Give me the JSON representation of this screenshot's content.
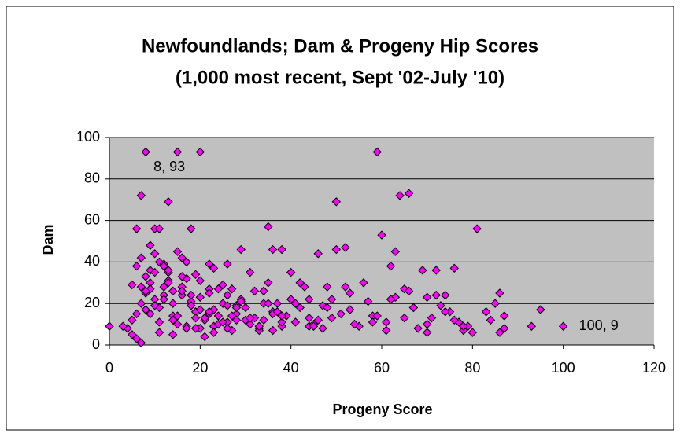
{
  "chart_data": {
    "type": "scatter",
    "title": [
      "Newfoundlands; Dam & Progeny Hip Scores",
      "(1,000 most recent, Sept '02-July '10)"
    ],
    "x_label": "Progeny Score",
    "y_label": "Dam",
    "xlim": [
      0,
      120
    ],
    "xticks": [
      0,
      20,
      40,
      60,
      80,
      100,
      120
    ],
    "ylim": [
      0,
      100
    ],
    "yticks": [
      0,
      20,
      40,
      60,
      80,
      100
    ],
    "grid": true,
    "background": "#c0c0c0",
    "series": [
      {
        "color": "#ff00ff",
        "x": [
          0,
          8,
          15,
          20,
          59,
          7,
          13,
          64,
          66,
          50,
          35,
          81,
          6,
          10,
          11,
          18,
          60,
          100,
          95,
          93,
          86,
          87,
          85,
          83,
          78,
          80,
          76,
          69,
          72,
          63,
          50,
          52,
          46,
          40,
          38,
          36,
          29,
          26,
          23,
          22,
          4,
          5,
          6,
          7,
          8,
          9,
          10,
          11,
          12,
          13,
          14,
          15,
          16,
          17,
          18,
          19,
          20,
          21,
          22,
          23,
          24,
          25,
          26,
          27,
          28,
          29,
          30,
          31,
          32,
          33,
          34,
          35,
          36,
          37,
          38,
          39,
          5,
          6,
          7,
          8,
          9,
          10,
          11,
          12,
          13,
          14,
          15,
          16,
          17,
          18,
          19,
          20,
          21,
          22,
          23,
          24,
          25,
          26,
          27,
          28,
          30,
          32,
          34,
          36,
          38,
          40,
          42,
          44,
          6,
          7,
          8,
          9,
          10,
          11,
          12,
          13,
          14,
          15,
          16,
          17,
          18,
          19,
          20,
          22,
          24,
          26,
          28,
          30,
          33,
          35,
          37,
          41,
          43,
          45,
          47,
          49,
          3,
          5,
          7,
          8,
          9,
          11,
          12,
          13,
          14,
          16,
          17,
          19,
          21,
          23,
          25,
          27,
          29,
          31,
          33,
          36,
          42,
          44,
          46,
          48,
          51,
          53,
          55,
          57,
          58,
          61,
          62,
          65,
          67,
          68,
          70,
          71,
          73,
          74,
          75,
          77,
          79,
          84,
          86,
          87,
          45,
          47,
          49,
          52,
          54,
          56,
          59,
          61,
          63,
          65,
          67,
          70,
          72,
          74,
          76,
          78,
          9,
          10,
          12,
          14,
          16,
          18,
          20,
          22,
          24,
          26,
          28,
          31,
          34,
          38,
          41,
          44,
          48,
          53,
          58,
          62,
          66,
          70
        ],
        "y": [
          9,
          93,
          93,
          93,
          93,
          72,
          69,
          72,
          73,
          69,
          57,
          56,
          56,
          56,
          56,
          56,
          53,
          9,
          17,
          9,
          25,
          14,
          20,
          16,
          7,
          6,
          37,
          36,
          36,
          45,
          46,
          47,
          44,
          35,
          46,
          46,
          46,
          39,
          37,
          39,
          8,
          12,
          15,
          20,
          25,
          30,
          22,
          18,
          28,
          35,
          14,
          10,
          24,
          32,
          19,
          16,
          8,
          12,
          27,
          9,
          14,
          20,
          11,
          7,
          15,
          22,
          18,
          10,
          13,
          8,
          12,
          30,
          16,
          20,
          9,
          14,
          5,
          38,
          42,
          33,
          27,
          19,
          40,
          24,
          36,
          12,
          45,
          28,
          9,
          21,
          34,
          17,
          13,
          25,
          6,
          10,
          29,
          8,
          14,
          19,
          12,
          26,
          20,
          15,
          11,
          22,
          18,
          9,
          3,
          28,
          17,
          36,
          44,
          11,
          22,
          31,
          5,
          14,
          26,
          40,
          19,
          8,
          23,
          15,
          10,
          24,
          18,
          12,
          7,
          20,
          16,
          11,
          28,
          10,
          19,
          13,
          9,
          29,
          1,
          26,
          15,
          6,
          39,
          30,
          20,
          42,
          8,
          13,
          4,
          17,
          11,
          27,
          21,
          13,
          9,
          7,
          30,
          22,
          12,
          18,
          15,
          25,
          9,
          21,
          14,
          11,
          38,
          27,
          18,
          8,
          23,
          13,
          19,
          24,
          16,
          11,
          9,
          12,
          6,
          8,
          9,
          8,
          22,
          28,
          10,
          30,
          14,
          7,
          23,
          13,
          18,
          10,
          24,
          16,
          12,
          9,
          48,
          35,
          38,
          26,
          33,
          24,
          31,
          16,
          27,
          19,
          12,
          35,
          26,
          14,
          20,
          13,
          28,
          17,
          11,
          22,
          26,
          6
        ]
      }
    ],
    "annotations": [
      {
        "text": "8, 93",
        "x": 8,
        "y": 93
      },
      {
        "text": "100, 9",
        "x": 100,
        "y": 9
      }
    ]
  }
}
